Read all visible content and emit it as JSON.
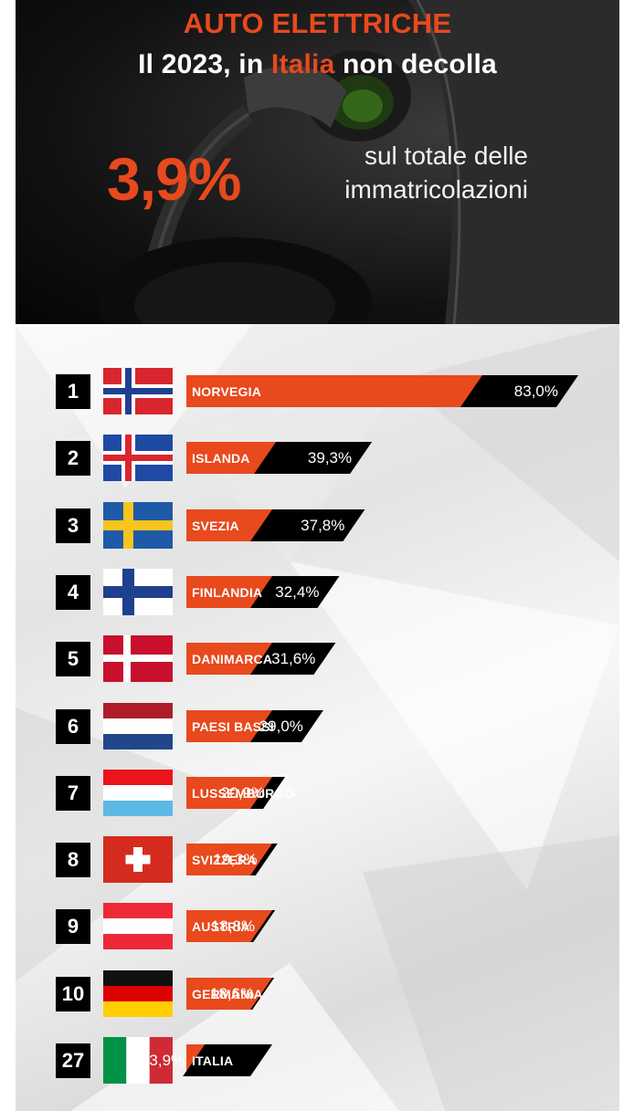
{
  "header": {
    "title": "AUTO ELETTRICHE",
    "subtitle_before": "Il 2023, in ",
    "subtitle_highlight": "Italia",
    "subtitle_after": " non decolla",
    "big_value": "3,9%",
    "big_value_description": "sul totale delle\nimmatricolazioni"
  },
  "colors": {
    "accent": "#e8491d",
    "bar_value_bg": "#000000",
    "rank_box": "#000000"
  },
  "chart_data": {
    "type": "bar",
    "orientation": "horizontal",
    "unit": "%",
    "categories": [
      "NORVEGIA",
      "ISLANDA",
      "SVEZIA",
      "FINLANDIA",
      "DANIMARCA",
      "PAESI BASSI",
      "LUSSEMBURGO",
      "SVIZZERA",
      "AUSTRIA",
      "GERMANIA",
      "ITALIA"
    ],
    "ranks": [
      "1",
      "2",
      "3",
      "4",
      "5",
      "6",
      "7",
      "8",
      "9",
      "10",
      "27"
    ],
    "values": [
      83.0,
      39.3,
      37.8,
      32.4,
      31.6,
      29.0,
      20.9,
      19.3,
      18.8,
      18.6,
      3.9
    ],
    "value_labels": [
      "83,0%",
      "39,3%",
      "37,8%",
      "32,4%",
      "31,6%",
      "29,0%",
      "20,9%",
      "19,3%",
      "18,8%",
      "18,6%",
      "3,9%"
    ],
    "flags": [
      "norway-flag-icon",
      "iceland-flag-icon",
      "sweden-flag-icon",
      "finland-flag-icon",
      "denmark-flag-icon",
      "netherlands-flag-icon",
      "luxembourg-flag-icon",
      "switzerland-flag-icon",
      "austria-flag-icon",
      "germany-flag-icon",
      "italy-flag-icon"
    ]
  }
}
